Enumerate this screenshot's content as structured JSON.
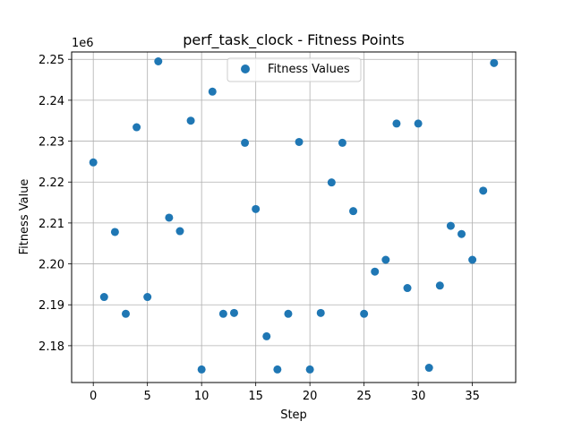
{
  "chart_data": {
    "type": "scatter",
    "title": "perf_task_clock - Fitness Points",
    "xlabel": "Step",
    "ylabel": "Fitness Value",
    "y_offset_label": "1e6",
    "xlim": [
      -2,
      39
    ],
    "ylim": [
      2171000,
      2251800
    ],
    "x_ticks": [
      0,
      5,
      10,
      15,
      20,
      25,
      30,
      35
    ],
    "y_ticks": [
      2180000,
      2190000,
      2200000,
      2210000,
      2220000,
      2230000,
      2240000,
      2250000
    ],
    "y_tick_labels": [
      "2.18",
      "2.19",
      "2.20",
      "2.21",
      "2.22",
      "2.23",
      "2.24",
      "2.25"
    ],
    "grid": true,
    "legend_position": "top-center",
    "series": [
      {
        "name": "Fitness Values",
        "color": "#1f77b4",
        "x": [
          0,
          1,
          2,
          3,
          4,
          5,
          6,
          7,
          8,
          9,
          10,
          11,
          12,
          13,
          14,
          15,
          16,
          17,
          18,
          19,
          20,
          21,
          22,
          23,
          24,
          25,
          26,
          27,
          28,
          29,
          30,
          31,
          32,
          33,
          34,
          35,
          36,
          37
        ],
        "y": [
          2224800,
          2191900,
          2207800,
          2187800,
          2233400,
          2191900,
          2249500,
          2211300,
          2208000,
          2235000,
          2174200,
          2242100,
          2187800,
          2188000,
          2229600,
          2213400,
          2182300,
          2174200,
          2187800,
          2229800,
          2174200,
          2188000,
          2219900,
          2229600,
          2212900,
          2187800,
          2198100,
          2201000,
          2234300,
          2194100,
          2234300,
          2174600,
          2194700,
          2209300,
          2207300,
          2201000,
          2217900,
          2249100
        ]
      }
    ]
  }
}
